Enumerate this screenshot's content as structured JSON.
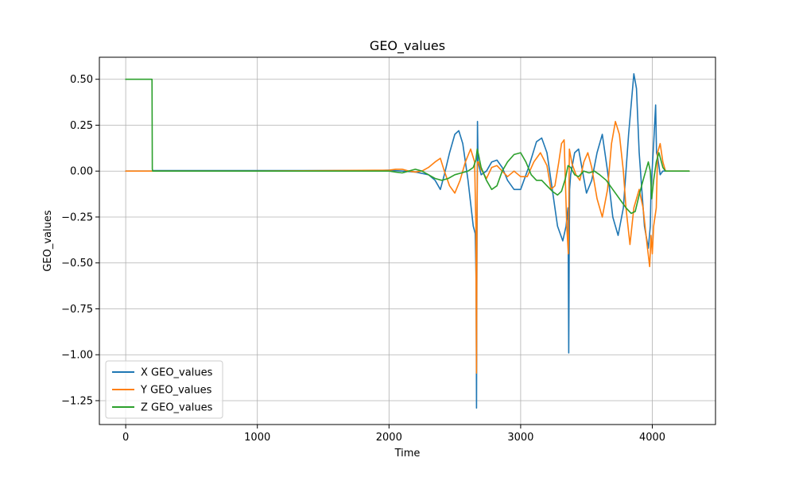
{
  "chart_data": {
    "type": "line",
    "title": "GEO_values",
    "xlabel": "Time",
    "ylabel": "GEO_values",
    "xlim": [
      -200,
      4480
    ],
    "ylim": [
      -1.38,
      0.62
    ],
    "xticks": [
      0,
      1000,
      2000,
      3000,
      4000
    ],
    "xtick_labels": [
      "0",
      "1000",
      "2000",
      "3000",
      "4000"
    ],
    "yticks": [
      0.5,
      0.25,
      0.0,
      -0.25,
      -0.5,
      -0.75,
      -1.0,
      -1.25
    ],
    "ytick_labels": [
      "0.50",
      "0.25",
      "0.00",
      "−0.25",
      "−0.50",
      "−0.75",
      "−1.00",
      "−1.25"
    ],
    "grid": true,
    "legend_position": "lower-left",
    "series": [
      {
        "name": "X GEO_values",
        "color": "#1f77b4",
        "x": [
          0,
          200,
          205,
          1000,
          1900,
          2000,
          2100,
          2200,
          2300,
          2350,
          2390,
          2420,
          2460,
          2500,
          2530,
          2560,
          2600,
          2640,
          2655,
          2662,
          2665,
          2668,
          2672,
          2676,
          2700,
          2740,
          2780,
          2820,
          2860,
          2900,
          2950,
          3000,
          3060,
          3120,
          3160,
          3200,
          3240,
          3280,
          3320,
          3345,
          3360,
          3365,
          3368,
          3372,
          3380,
          3410,
          3440,
          3470,
          3500,
          3540,
          3580,
          3620,
          3660,
          3700,
          3740,
          3780,
          3820,
          3860,
          3880,
          3900,
          3940,
          3970,
          3985,
          3990,
          4000,
          4010,
          4025,
          4032,
          4040,
          4060,
          4080,
          4100
        ],
        "y": [
          0.0,
          0.0,
          0.003,
          0.003,
          0.003,
          0.005,
          0.0,
          -0.005,
          -0.02,
          -0.05,
          -0.1,
          -0.02,
          0.1,
          0.2,
          0.22,
          0.15,
          -0.05,
          -0.3,
          -0.34,
          -0.6,
          -1.29,
          -0.5,
          0.27,
          0.05,
          -0.02,
          0.0,
          0.05,
          0.06,
          0.02,
          -0.05,
          -0.1,
          -0.1,
          0.02,
          0.16,
          0.18,
          0.1,
          -0.1,
          -0.3,
          -0.38,
          -0.3,
          -0.2,
          -0.99,
          -0.5,
          -0.1,
          -0.02,
          0.1,
          0.12,
          0.0,
          -0.12,
          -0.05,
          0.1,
          0.2,
          0.0,
          -0.25,
          -0.35,
          -0.2,
          0.2,
          0.53,
          0.45,
          0.1,
          -0.3,
          -0.42,
          -0.3,
          -0.1,
          0.02,
          0.15,
          0.36,
          0.1,
          0.08,
          -0.02,
          0.0,
          0.0
        ]
      },
      {
        "name": "Y GEO_values",
        "color": "#ff7f0e",
        "x": [
          0,
          200,
          205,
          1000,
          2000,
          2050,
          2100,
          2150,
          2200,
          2250,
          2300,
          2350,
          2390,
          2420,
          2460,
          2500,
          2540,
          2580,
          2620,
          2650,
          2660,
          2665,
          2668,
          2672,
          2680,
          2700,
          2740,
          2780,
          2820,
          2860,
          2900,
          2950,
          3000,
          3050,
          3100,
          3150,
          3200,
          3230,
          3260,
          3290,
          3310,
          3330,
          3350,
          3362,
          3366,
          3370,
          3390,
          3420,
          3450,
          3480,
          3510,
          3540,
          3580,
          3620,
          3660,
          3690,
          3720,
          3750,
          3780,
          3800,
          3830,
          3860,
          3900,
          3930,
          3960,
          3980,
          3990,
          4000,
          4010,
          4030,
          4040,
          4060,
          4080,
          4100,
          4200,
          4280
        ],
        "y": [
          0.0,
          0.0,
          0.0,
          0.0,
          0.005,
          0.01,
          0.01,
          0.0,
          -0.005,
          0.0,
          0.02,
          0.05,
          0.07,
          0.0,
          -0.08,
          -0.12,
          -0.05,
          0.05,
          0.12,
          0.05,
          -0.3,
          -1.1,
          -0.3,
          0.05,
          0.05,
          0.01,
          -0.04,
          0.02,
          0.03,
          0.0,
          -0.03,
          0.0,
          -0.03,
          -0.03,
          0.05,
          0.1,
          0.03,
          -0.1,
          -0.08,
          0.05,
          0.15,
          0.17,
          -0.3,
          -0.45,
          -0.2,
          0.12,
          0.04,
          -0.02,
          -0.05,
          0.05,
          0.1,
          0.02,
          -0.15,
          -0.25,
          -0.1,
          0.15,
          0.27,
          0.2,
          0.0,
          -0.2,
          -0.4,
          -0.2,
          -0.1,
          -0.2,
          -0.4,
          -0.52,
          -0.35,
          -0.45,
          -0.3,
          -0.2,
          0.1,
          0.15,
          0.05,
          0.0,
          0.0,
          0.0
        ]
      },
      {
        "name": "Z GEO_values",
        "color": "#2ca02c",
        "x": [
          0,
          200,
          202,
          205,
          1000,
          2000,
          2050,
          2100,
          2150,
          2200,
          2250,
          2300,
          2350,
          2400,
          2450,
          2500,
          2550,
          2600,
          2640,
          2660,
          2670,
          2680,
          2700,
          2740,
          2780,
          2820,
          2860,
          2900,
          2950,
          3000,
          3040,
          3080,
          3120,
          3160,
          3200,
          3240,
          3280,
          3310,
          3340,
          3360,
          3380,
          3410,
          3440,
          3480,
          3520,
          3560,
          3600,
          3650,
          3700,
          3750,
          3800,
          3840,
          3870,
          3900,
          3930,
          3950,
          3970,
          3985,
          3995,
          4010,
          4030,
          4050,
          4080,
          4100,
          4200,
          4280
        ],
        "y": [
          0.5,
          0.5,
          0.01,
          0.0,
          0.0,
          0.0,
          -0.005,
          -0.01,
          0.0,
          0.01,
          0.0,
          -0.02,
          -0.04,
          -0.05,
          -0.04,
          -0.02,
          -0.01,
          0.0,
          0.02,
          0.06,
          0.12,
          0.09,
          0.02,
          -0.05,
          -0.1,
          -0.08,
          0.0,
          0.05,
          0.09,
          0.1,
          0.05,
          -0.02,
          -0.05,
          -0.05,
          -0.08,
          -0.11,
          -0.13,
          -0.11,
          -0.04,
          0.03,
          0.02,
          -0.02,
          -0.03,
          0.0,
          -0.01,
          0.0,
          -0.02,
          -0.05,
          -0.1,
          -0.15,
          -0.2,
          -0.23,
          -0.22,
          -0.13,
          -0.05,
          0.0,
          0.05,
          0.0,
          -0.15,
          -0.05,
          0.05,
          0.1,
          0.02,
          0.0,
          0.0,
          0.0
        ]
      }
    ]
  }
}
